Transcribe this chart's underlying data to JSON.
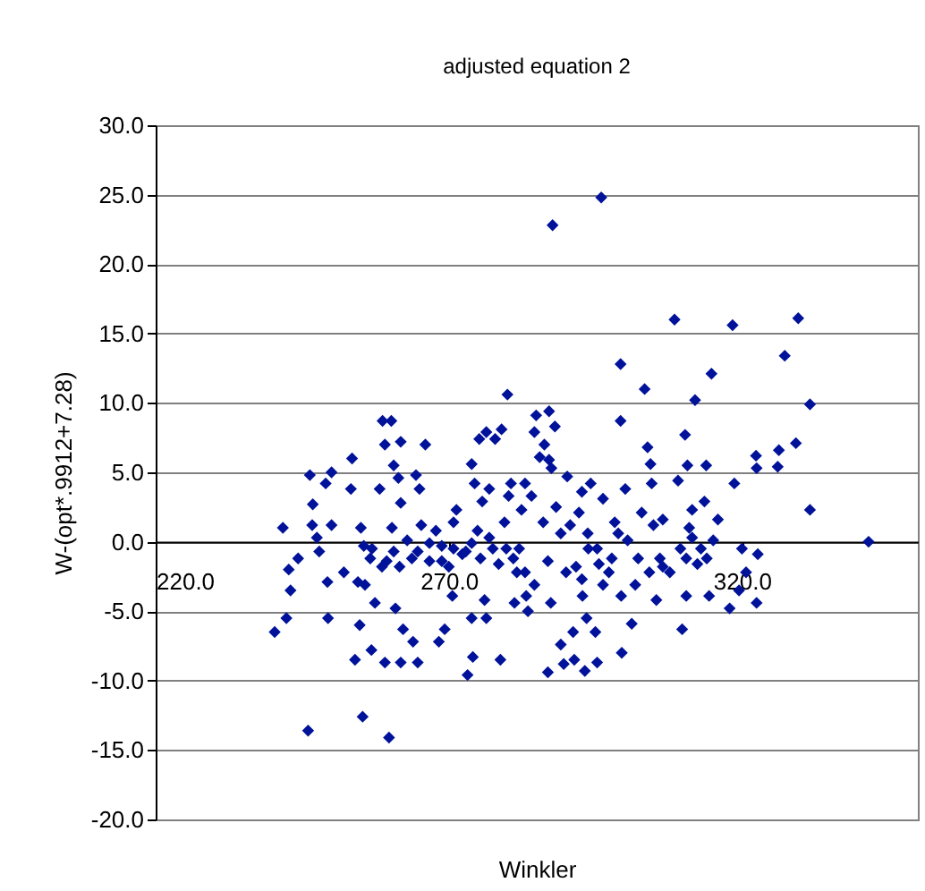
{
  "chart_data": {
    "type": "scatter",
    "title": "adjusted equation 2",
    "xlabel": "Winkler",
    "ylabel": "W-(opt*.9912+7.28)",
    "xlim": [
      220,
      350
    ],
    "xticks": [
      {
        "value": 220,
        "label": "220.0"
      },
      {
        "value": 270,
        "label": "270.0"
      },
      {
        "value": 320,
        "label": "320.0"
      }
    ],
    "ylim": [
      -20,
      30
    ],
    "yticks": [
      {
        "value": -20,
        "label": "-20.0"
      },
      {
        "value": -15,
        "label": "-15.0"
      },
      {
        "value": -10,
        "label": "-10.0"
      },
      {
        "value": -5,
        "label": "-5.0"
      },
      {
        "value": 0,
        "label": "0.0"
      },
      {
        "value": 5,
        "label": "5.0"
      },
      {
        "value": 10,
        "label": "10.0"
      },
      {
        "value": 15,
        "label": "15.0"
      },
      {
        "value": 20,
        "label": "20.0"
      },
      {
        "value": 25,
        "label": "25.0"
      },
      {
        "value": 30,
        "label": "30.0"
      }
    ],
    "grid": "y",
    "legend": false,
    "marker": "diamond",
    "series": [
      {
        "color": "#00129a",
        "x": [
          287.7,
          296.0,
          240.3,
          241.7,
          242.3,
          242.7,
          243.0,
          244.3,
          246.0,
          246.3,
          246.8,
          246.7,
          247.5,
          247.9,
          249.0,
          249.3,
          249.4,
          250.0,
          250.0,
          252.1,
          253.3,
          253.5,
          254.0,
          254.8,
          254.5,
          255.0,
          255.3,
          255.7,
          256.8,
          256.9,
          257.4,
          258.2,
          258.7,
          259.1,
          259.1,
          259.4,
          259.8,
          260.2,
          260.3,
          260.6,
          260.9,
          261.4,
          261.6,
          261.8,
          261.8,
          261.8,
          262.2,
          262.9,
          263.7,
          263.9,
          264.4,
          264.7,
          265.0,
          265.3,
          266.0,
          266.7,
          268.3,
          268.8,
          269.3,
          270.0,
          270.6,
          270.8,
          271.3,
          272.3,
          273.2,
          273.9,
          273.9,
          274.1,
          274.4,
          274.9,
          275.2,
          275.7,
          276.1,
          276.4,
          276.4,
          276.9,
          277.5,
          277.9,
          278.8,
          279.0,
          279.5,
          280.0,
          280.2,
          280.6,
          281.0,
          281.2,
          281.6,
          282.4,
          283.0,
          283.2,
          283.5,
          284.1,
          284.6,
          284.9,
          285.5,
          286.1,
          286.3,
          286.9,
          286.9,
          287.1,
          287.1,
          287.4,
          287.5,
          288.1,
          288.3,
          289.1,
          289.1,
          289.6,
          290.0,
          290.2,
          290.7,
          291.2,
          291.4,
          292.2,
          292.7,
          292.8,
          293.2,
          293.5,
          293.8,
          294.2,
          295.0,
          295.3,
          295.6,
          296.3,
          297.3,
          298.3,
          298.9,
          299.3,
          299.3,
          299.4,
          299.5,
          300.1,
          300.5,
          301.2,
          301.8,
          302.9,
          303.4,
          303.9,
          304.2,
          304.4,
          304.6,
          304.9,
          305.4,
          306.0,
          306.5,
          307.7,
          308.5,
          309.1,
          309.5,
          309.8,
          310.3,
          310.5,
          310.7,
          311.0,
          311.5,
          312.0,
          312.4,
          313.6,
          313.9,
          314.0,
          314.4,
          314.8,
          315.1,
          315.9,
          317.9,
          318.4,
          318.7,
          319.5,
          320.0,
          320.7,
          322.4,
          322.5,
          322.5,
          322.7,
          326.1,
          326.3,
          327.3,
          329.2,
          329.6,
          331.6,
          331.6,
          341.6,
          255.5,
          256.6,
          258.6,
          260.6,
          264.7,
          266.7,
          267.8,
          268.8,
          270.8,
          272.9,
          273.9,
          275.4,
          276.9,
          278.5,
          279.8,
          282.0,
          283.0,
          284.6,
          291.7,
          292.7,
          293.7,
          295.3,
          296.3,
          297.8,
          302.3,
          306.5,
          310.5,
          311.5,
          313.0
        ],
        "values": [
          22.8,
          24.8,
          -6.5,
          1.0,
          -5.5,
          -2.0,
          -3.5,
          -1.2,
          -13.6,
          4.8,
          2.7,
          1.2,
          0.3,
          -0.7,
          4.2,
          -2.9,
          -5.5,
          5.0,
          1.2,
          -2.2,
          3.8,
          6.0,
          -8.5,
          -6.0,
          -2.9,
          1.0,
          -12.6,
          -3.1,
          -7.8,
          -0.5,
          -4.4,
          3.8,
          8.7,
          7.0,
          -8.7,
          -1.4,
          -14.1,
          8.7,
          1.0,
          5.5,
          -4.8,
          4.6,
          -1.8,
          7.2,
          2.8,
          -8.7,
          -6.3,
          0.1,
          -1.2,
          -7.2,
          4.8,
          -8.7,
          3.8,
          1.2,
          7.0,
          -1.4,
          -7.2,
          -0.3,
          -6.3,
          -1.8,
          -3.9,
          1.4,
          2.3,
          -0.9,
          -9.6,
          -5.5,
          5.6,
          -8.3,
          4.2,
          0.8,
          7.4,
          2.9,
          -4.2,
          -5.5,
          7.9,
          3.8,
          -0.5,
          7.4,
          -8.5,
          8.1,
          1.4,
          10.6,
          3.3,
          4.2,
          -1.2,
          -4.4,
          -2.2,
          2.3,
          4.2,
          -3.9,
          -5.0,
          3.3,
          7.9,
          9.1,
          6.1,
          1.4,
          7.0,
          -1.4,
          -9.4,
          5.9,
          9.4,
          -4.4,
          5.3,
          8.3,
          2.5,
          0.6,
          -7.4,
          -8.8,
          -2.2,
          4.7,
          1.2,
          -6.5,
          -8.5,
          2.1,
          3.6,
          -3.9,
          -9.3,
          -5.5,
          -0.5,
          4.2,
          -6.5,
          -8.7,
          -1.6,
          3.1,
          -2.2,
          1.4,
          0.6,
          12.8,
          8.7,
          -3.9,
          -8.0,
          3.8,
          0.1,
          -5.9,
          -3.1,
          2.1,
          11.0,
          6.8,
          -2.2,
          5.6,
          4.2,
          1.2,
          -4.2,
          -1.2,
          1.6,
          -2.2,
          16.0,
          4.4,
          -0.5,
          -6.3,
          7.7,
          -3.9,
          5.5,
          1.0,
          2.3,
          10.2,
          -1.6,
          2.9,
          5.5,
          -1.2,
          -3.9,
          12.1,
          0.1,
          1.6,
          -4.8,
          15.6,
          4.2,
          -3.5,
          -0.5,
          -2.2,
          6.2,
          5.3,
          -4.4,
          -0.9,
          5.4,
          6.6,
          13.4,
          7.1,
          16.1,
          9.9,
          2.3,
          0.0,
          -0.3,
          -1.2,
          -1.8,
          -0.7,
          -0.7,
          -0.1,
          0.8,
          -1.4,
          -0.5,
          -0.7,
          -0.1,
          -1.2,
          0.3,
          -1.6,
          -0.5,
          -0.5,
          -2.2,
          -3.1,
          -1.8,
          -2.7,
          0.6,
          -0.5,
          -3.1,
          -1.2,
          -1.2,
          -1.8,
          -1.2,
          0.3,
          -0.5
        ]
      }
    ]
  }
}
